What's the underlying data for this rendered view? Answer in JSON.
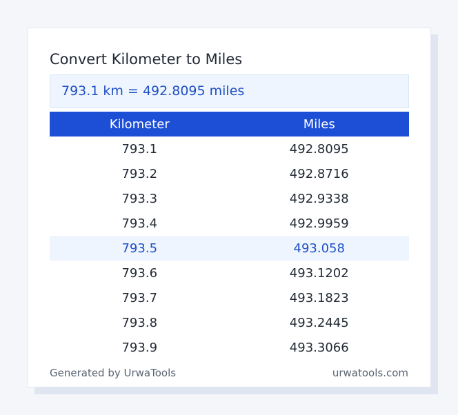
{
  "title": "Convert Kilometer to Miles",
  "result": "793.1 km = 492.8095 miles",
  "table": {
    "headers": [
      "Kilometer",
      "Miles"
    ],
    "rows": [
      [
        "793.1",
        "492.8095"
      ],
      [
        "793.2",
        "492.8716"
      ],
      [
        "793.3",
        "492.9338"
      ],
      [
        "793.4",
        "492.9959"
      ],
      [
        "793.5",
        "493.058"
      ],
      [
        "793.6",
        "493.1202"
      ],
      [
        "793.7",
        "493.1823"
      ],
      [
        "793.8",
        "493.2445"
      ],
      [
        "793.9",
        "493.3066"
      ]
    ],
    "highlight_row": 4
  },
  "footer": {
    "left": "Generated by UrwaTools",
    "right": "urwatools.com"
  },
  "colors": {
    "accent": "#1d4fd6",
    "highlight_bg": "#eef5ff",
    "highlight_text": "#1f4fc2"
  }
}
